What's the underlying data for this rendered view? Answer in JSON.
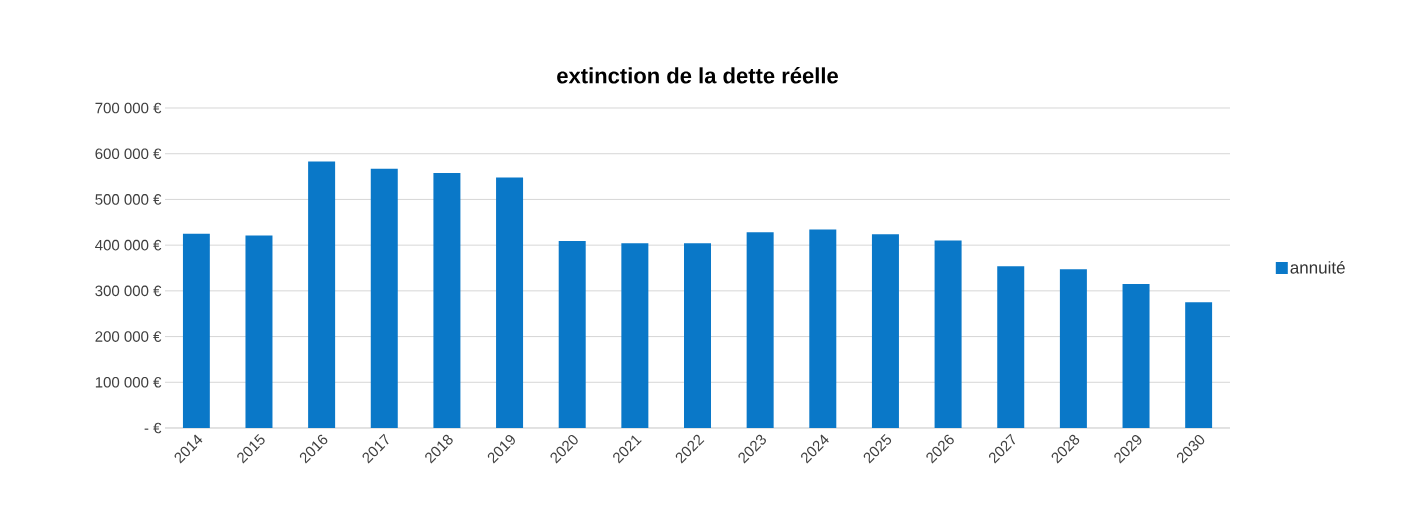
{
  "chart_data": {
    "type": "bar",
    "title": "extinction de la dette réelle",
    "categories": [
      "2014",
      "2015",
      "2016",
      "2017",
      "2018",
      "2019",
      "2020",
      "2021",
      "2022",
      "2023",
      "2024",
      "2025",
      "2026",
      "2027",
      "2028",
      "2029",
      "2030"
    ],
    "series": [
      {
        "name": "annuité",
        "color": "#0a78c8",
        "values": [
          425000,
          421000,
          583000,
          567000,
          558000,
          548000,
          409000,
          404000,
          404000,
          428000,
          434000,
          424000,
          410000,
          354000,
          347000,
          315000,
          275000
        ]
      }
    ],
    "ylim": [
      0,
      700000
    ],
    "yticks": [
      {
        "value": 0,
        "label": "- €"
      },
      {
        "value": 100000,
        "label": "100 000 €"
      },
      {
        "value": 200000,
        "label": "200 000 €"
      },
      {
        "value": 300000,
        "label": "300 000 €"
      },
      {
        "value": 400000,
        "label": "400 000 €"
      },
      {
        "value": 500000,
        "label": "500 000 €"
      },
      {
        "value": 600000,
        "label": "600 000 €"
      },
      {
        "value": 700000,
        "label": "700 000 €"
      }
    ],
    "grid": "y",
    "legend": "right"
  }
}
